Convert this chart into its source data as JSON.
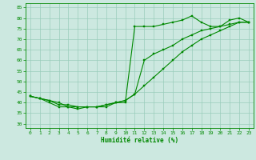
{
  "title": "",
  "xlabel": "Humidité relative (%)",
  "ylabel": "",
  "bg_color": "#cce8e0",
  "grid_color": "#99ccbb",
  "line_color": "#008800",
  "xlim": [
    -0.5,
    23.5
  ],
  "ylim": [
    28,
    87
  ],
  "yticks": [
    30,
    35,
    40,
    45,
    50,
    55,
    60,
    65,
    70,
    75,
    80,
    85
  ],
  "xticks": [
    0,
    1,
    2,
    3,
    4,
    5,
    6,
    7,
    8,
    9,
    10,
    11,
    12,
    13,
    14,
    15,
    16,
    17,
    18,
    19,
    20,
    21,
    22,
    23
  ],
  "line1": [
    43,
    42,
    40,
    38,
    38,
    37,
    38,
    38,
    38,
    40,
    40,
    76,
    76,
    76,
    77,
    78,
    79,
    81,
    78,
    76,
    76,
    79,
    80,
    78
  ],
  "line2": [
    43,
    42,
    41,
    39,
    39,
    38,
    38,
    38,
    39,
    40,
    41,
    44,
    60,
    63,
    65,
    67,
    70,
    72,
    74,
    75,
    76,
    77,
    78,
    78
  ],
  "line3": [
    43,
    42,
    41,
    40,
    38,
    38,
    38,
    38,
    39,
    40,
    41,
    44,
    48,
    52,
    56,
    60,
    64,
    67,
    70,
    72,
    74,
    76,
    78,
    78
  ]
}
